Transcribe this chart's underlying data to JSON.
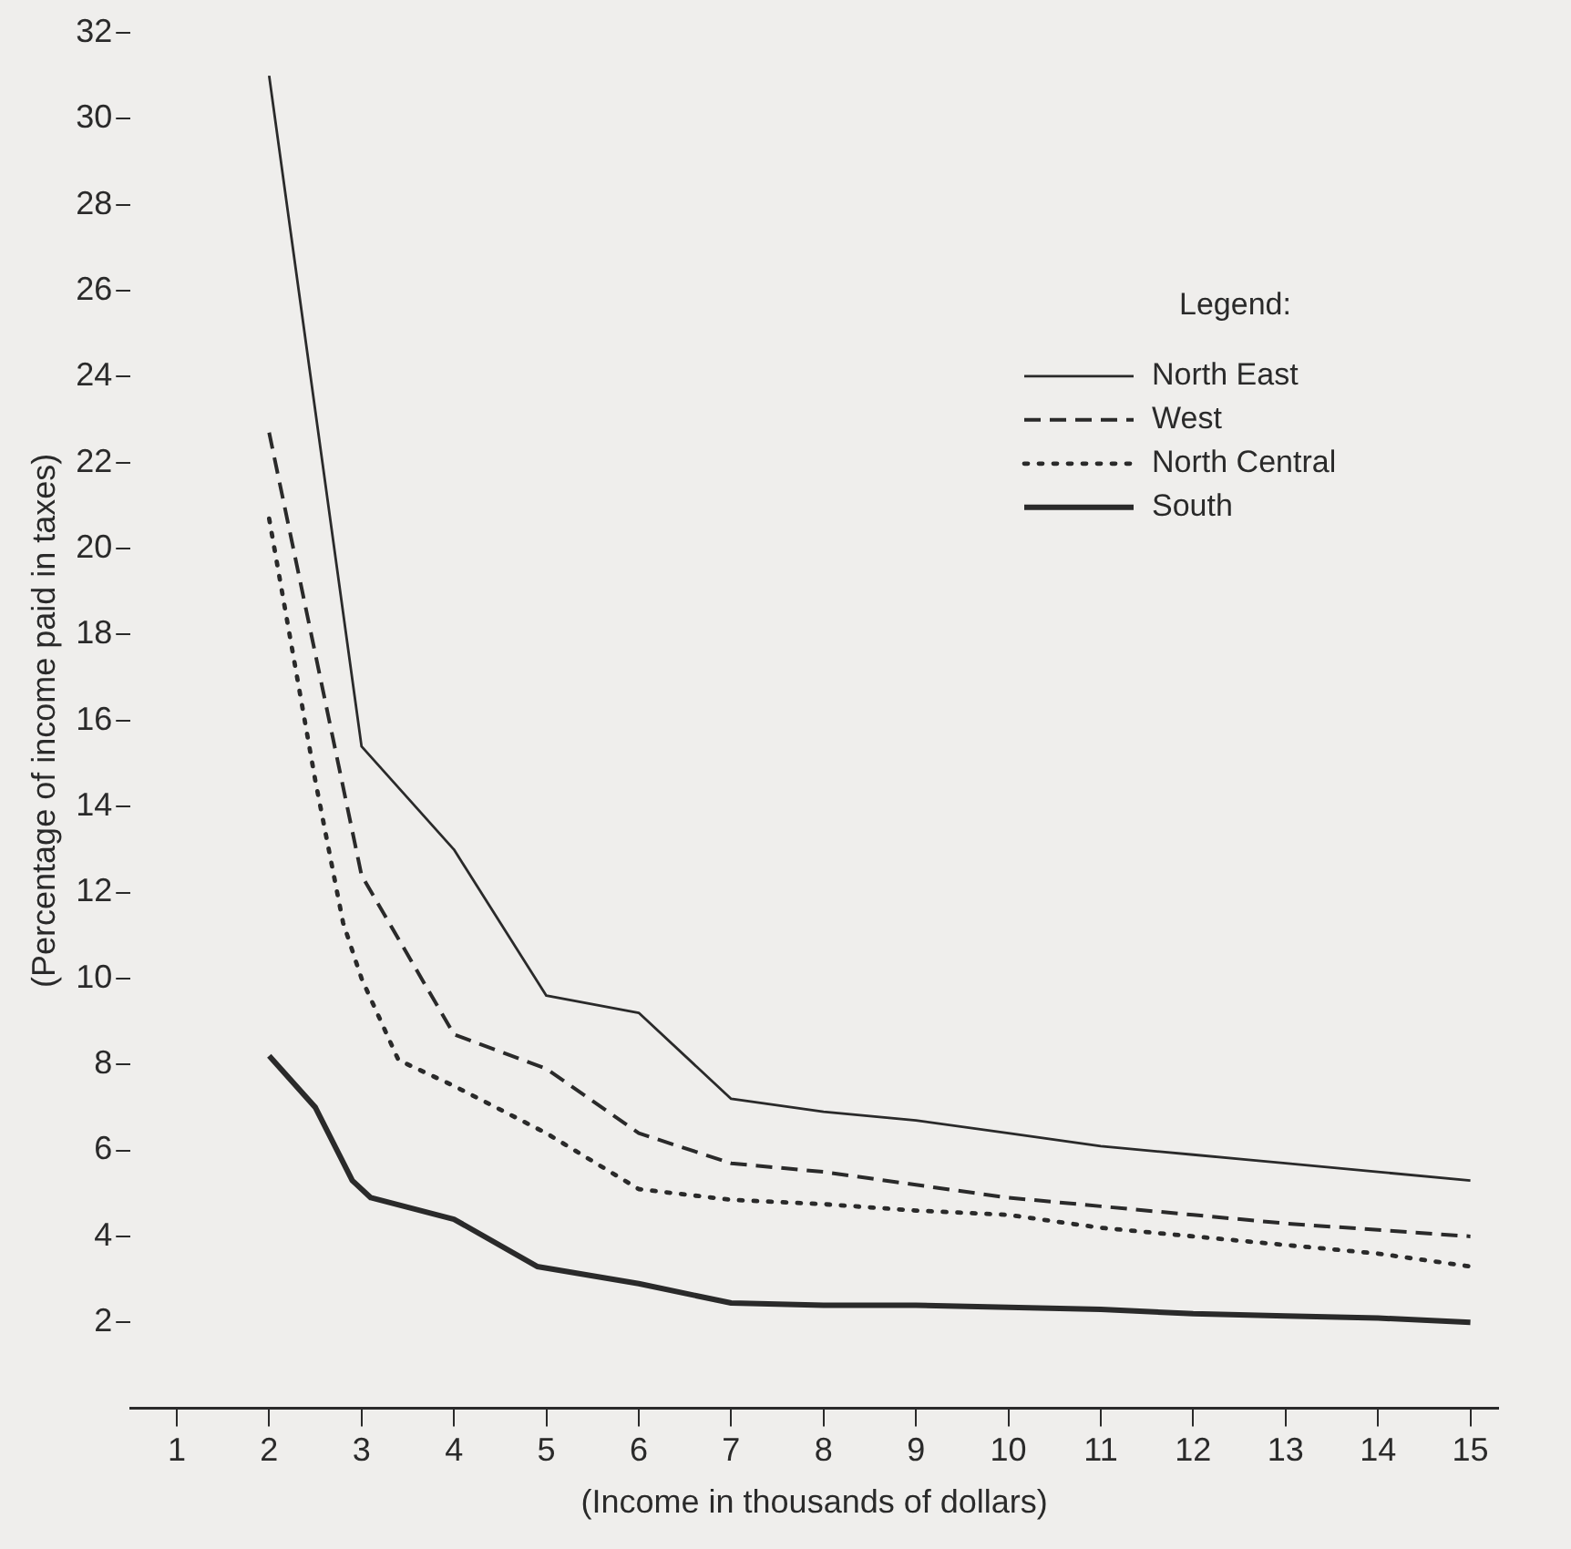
{
  "chart_data": {
    "type": "line",
    "xlabel": "(Income in thousands of dollars)",
    "ylabel": "(Percentage of income paid in taxes)",
    "legend_title": "Legend:",
    "xlim": [
      0.5,
      15.3
    ],
    "xticks": [
      1,
      2,
      3,
      4,
      5,
      6,
      7,
      8,
      9,
      10,
      11,
      12,
      13,
      14,
      15
    ],
    "ylim": [
      0,
      32
    ],
    "yticks": [
      2,
      4,
      6,
      8,
      10,
      12,
      14,
      16,
      18,
      20,
      22,
      24,
      26,
      28,
      30,
      32
    ],
    "grid": false,
    "legend": "top right",
    "marker": "none",
    "series": [
      {
        "name": "North East",
        "color": "#2a2a2a",
        "line_style": "solid",
        "x": [
          2,
          3,
          4,
          5,
          6,
          7,
          8,
          9,
          10,
          11,
          12,
          13,
          14,
          15
        ],
        "values": [
          31,
          15.4,
          13,
          9.6,
          9.2,
          7.2,
          6.9,
          6.7,
          6.4,
          6.1,
          5.9,
          5.7,
          5.5,
          5.3
        ]
      },
      {
        "name": "West",
        "color": "#2a2a2a",
        "line_style": "dashed",
        "x": [
          2,
          3,
          4,
          5,
          6,
          7,
          8,
          9,
          10,
          11,
          12,
          13,
          14,
          15
        ],
        "values": [
          22.7,
          12.4,
          8.7,
          7.9,
          6.4,
          5.7,
          5.5,
          5.2,
          4.9,
          4.7,
          4.5,
          4.3,
          4.15,
          4.0
        ]
      },
      {
        "name": "North Central",
        "color": "#2a2a2a",
        "line_style": "dotted",
        "x": [
          2,
          2.5,
          2.8,
          3,
          3.4,
          4,
          5,
          6,
          7,
          8,
          9,
          10,
          11,
          12,
          13,
          14,
          15
        ],
        "values": [
          20.7,
          14.6,
          11.3,
          10,
          8.1,
          7.5,
          6.4,
          5.1,
          4.85,
          4.75,
          4.6,
          4.5,
          4.2,
          4.0,
          3.8,
          3.6,
          3.3
        ]
      },
      {
        "name": "South",
        "color": "#2a2a2a",
        "line_style": "solid",
        "x": [
          2,
          2.5,
          2.9,
          3.1,
          4,
          4.9,
          6,
          7,
          8,
          9,
          10,
          11,
          12,
          13,
          14,
          15
        ],
        "values": [
          8.2,
          7,
          5.3,
          4.9,
          4.4,
          3.3,
          2.9,
          2.45,
          2.4,
          2.4,
          2.35,
          2.3,
          2.2,
          2.15,
          2.1,
          2.0
        ]
      }
    ]
  }
}
